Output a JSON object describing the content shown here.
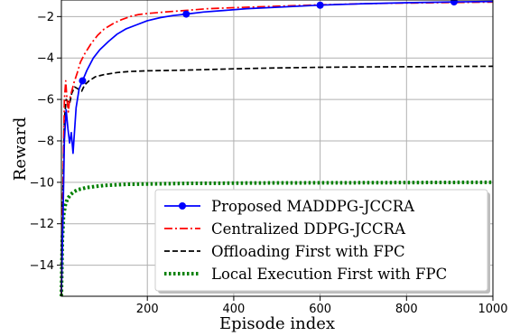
{
  "chart_data": {
    "type": "line",
    "xlabel": "Episode index",
    "ylabel": "Reward",
    "xlim": [
      1,
      1000
    ],
    "ylim": [
      -15.5,
      -1.2
    ],
    "xticks": [
      200,
      400,
      600,
      800,
      1000
    ],
    "yticks": [
      -14,
      -12,
      -10,
      -8,
      -6,
      -4,
      -2
    ],
    "grid": true,
    "legend_position": "lower-right",
    "series": [
      {
        "name": "Proposed MADDPG-JCCRA",
        "color": "#0000ff",
        "style": "solid-marker",
        "markers_x": [
          50,
          290,
          600,
          910
        ],
        "x": [
          1,
          5,
          8,
          12,
          16,
          20,
          24,
          28,
          35,
          42,
          50,
          60,
          75,
          90,
          110,
          130,
          150,
          175,
          200,
          230,
          260,
          290,
          330,
          380,
          430,
          500,
          600,
          700,
          800,
          910,
          1000
        ],
        "y": [
          -15.3,
          -11.5,
          -8.0,
          -6.5,
          -7.4,
          -8.1,
          -7.6,
          -8.6,
          -6.4,
          -5.5,
          -5.1,
          -4.6,
          -4.0,
          -3.6,
          -3.2,
          -2.85,
          -2.6,
          -2.4,
          -2.2,
          -2.05,
          -1.95,
          -1.88,
          -1.78,
          -1.7,
          -1.62,
          -1.55,
          -1.45,
          -1.38,
          -1.33,
          -1.29,
          -1.27
        ]
      },
      {
        "name": "Centralized DDPG-JCCRA",
        "color": "#ff0000",
        "style": "dashdot",
        "x": [
          1,
          5,
          8,
          11,
          14,
          17,
          20,
          25,
          30,
          38,
          45,
          55,
          70,
          85,
          100,
          120,
          140,
          160,
          180,
          200,
          240,
          290,
          340,
          400,
          500,
          600,
          700,
          800,
          900,
          1000
        ],
        "y": [
          -15.3,
          -10.0,
          -6.0,
          -5.1,
          -6.0,
          -6.6,
          -6.0,
          -5.6,
          -5.2,
          -4.7,
          -4.2,
          -3.8,
          -3.3,
          -2.9,
          -2.6,
          -2.35,
          -2.15,
          -2.0,
          -1.9,
          -1.85,
          -1.78,
          -1.7,
          -1.62,
          -1.57,
          -1.5,
          -1.43,
          -1.38,
          -1.35,
          -1.32,
          -1.3
        ]
      },
      {
        "name": "Offloading First with FPC",
        "color": "#000000",
        "style": "dashed",
        "x": [
          1,
          4,
          8,
          12,
          16,
          20,
          25,
          32,
          40,
          48,
          55,
          65,
          80,
          100,
          130,
          160,
          200,
          250,
          300,
          400,
          500,
          600,
          700,
          800,
          900,
          1000
        ],
        "y": [
          -15.5,
          -11.0,
          -7.0,
          -6.0,
          -6.1,
          -6.2,
          -5.7,
          -5.4,
          -5.5,
          -5.6,
          -5.3,
          -5.1,
          -4.9,
          -4.8,
          -4.7,
          -4.65,
          -4.62,
          -4.6,
          -4.58,
          -4.52,
          -4.48,
          -4.45,
          -4.43,
          -4.42,
          -4.41,
          -4.4
        ]
      },
      {
        "name": "Local Execution First with FPC",
        "color": "#008000",
        "style": "dotted",
        "x": [
          1,
          3,
          6,
          10,
          15,
          22,
          30,
          40,
          60,
          80,
          100,
          150,
          200,
          300,
          500,
          700,
          1000
        ],
        "y": [
          -15.5,
          -12.8,
          -11.6,
          -11.1,
          -10.8,
          -10.6,
          -10.45,
          -10.35,
          -10.25,
          -10.2,
          -10.15,
          -10.1,
          -10.08,
          -10.05,
          -10.03,
          -10.02,
          -10.0
        ]
      }
    ]
  }
}
